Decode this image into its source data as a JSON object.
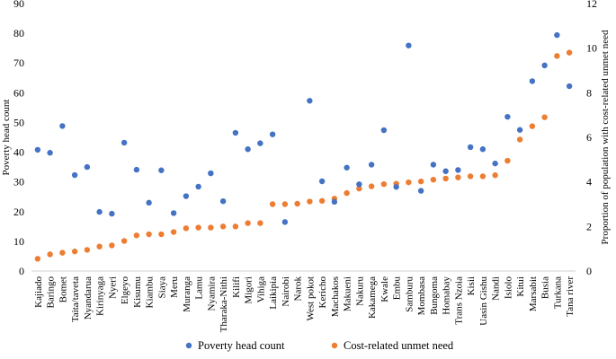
{
  "chart_data": {
    "type": "scatter",
    "title": "",
    "ylabel": "Poverty head count",
    "y2label": "Proportion of population with cost-related unmet need",
    "ylim": [
      0,
      90
    ],
    "y2lim": [
      0,
      12
    ],
    "yticks": [
      0,
      10,
      20,
      30,
      40,
      50,
      60,
      70,
      80,
      90
    ],
    "y2ticks": [
      0,
      2,
      4,
      6,
      8,
      10,
      12
    ],
    "grid": false,
    "legend": "bottom",
    "categories": [
      "Kajiado",
      "Baringo",
      "Bomet",
      "Taita/taveta",
      "Nyandarua",
      "Kirinyaga",
      "Nyeri",
      "Elgeyo",
      "Kisumu",
      "Kiambu",
      "Siaya",
      "Meru",
      "Muranga",
      "Lamu",
      "Nyamira",
      "Tharaka-Nithi",
      "Kilifi",
      "Migori",
      "Vihiga",
      "Laikipia",
      "Nairobi",
      "Narok",
      "West pokot",
      "Kericho",
      "Machakos",
      "Makueni",
      "Nakuru",
      "Kakamega",
      "Kwale",
      "Embu",
      "Samburu",
      "Mombasa",
      "Bungoma",
      "Homabay",
      "Trans Nzoia",
      "Kisii",
      "Uasin Gishu",
      "Nandi",
      "Isiolo",
      "Kitui",
      "Marsabit",
      "Busia",
      "Turkana",
      "Tana river"
    ],
    "series": [
      {
        "name": "Poverty head count",
        "axis": "left",
        "color": "#4472C4",
        "values": [
          40.8,
          39.8,
          48.8,
          32.3,
          35.0,
          19.9,
          19.3,
          43.2,
          34.1,
          23.0,
          33.9,
          19.5,
          25.2,
          28.4,
          32.9,
          23.5,
          46.5,
          41.0,
          43.0,
          46.0,
          16.5,
          null,
          57.3,
          30.2,
          23.3,
          34.8,
          29.2,
          35.8,
          47.4,
          28.3,
          75.9,
          27.0,
          35.8,
          33.6,
          34.0,
          41.7,
          41.0,
          36.2,
          51.9,
          47.5,
          63.9,
          69.2,
          79.4,
          62.2
        ]
      },
      {
        "name": "Cost-related unmet need",
        "axis": "right",
        "color": "#ED7D31",
        "values": [
          0.55,
          0.75,
          0.82,
          0.88,
          0.95,
          1.1,
          1.15,
          1.35,
          1.6,
          1.65,
          1.65,
          1.75,
          1.92,
          1.95,
          1.95,
          2.0,
          2.0,
          2.15,
          2.15,
          3.0,
          3.0,
          3.02,
          3.12,
          3.15,
          3.25,
          3.5,
          3.7,
          3.8,
          3.9,
          3.92,
          3.98,
          4.02,
          4.1,
          4.15,
          4.2,
          4.25,
          4.25,
          4.3,
          4.95,
          5.9,
          6.5,
          6.9,
          9.65,
          9.8
        ]
      }
    ]
  }
}
